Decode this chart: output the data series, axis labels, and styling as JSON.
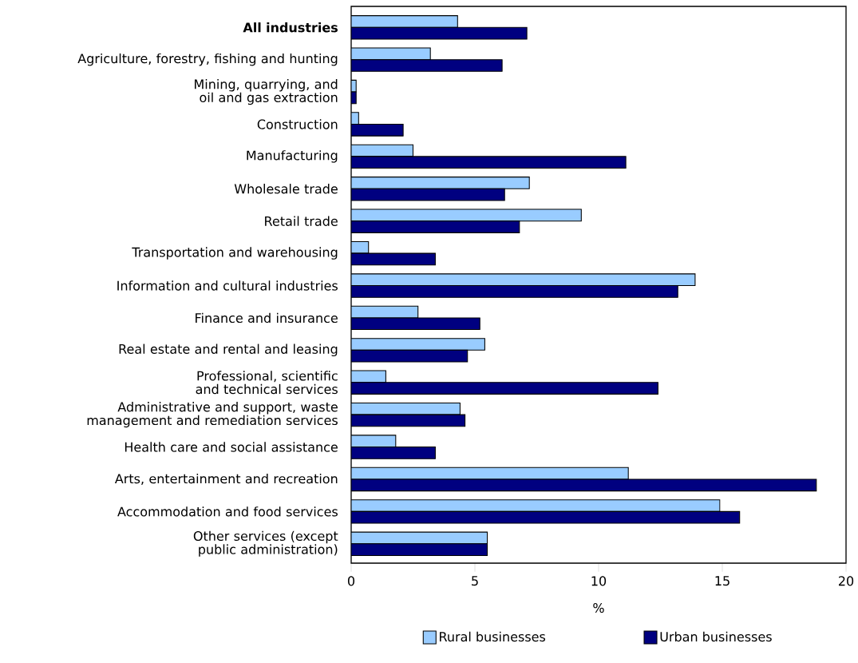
{
  "chart_data": {
    "type": "bar",
    "orientation": "horizontal",
    "categories": [
      "**All industries**",
      "Agriculture, forestry, fishing and hunting",
      "Mining, quarrying, and oil and gas extraction",
      "Construction",
      "Manufacturing",
      "Wholesale trade",
      "Retail trade",
      "Transportation and warehousing",
      "Information and cultural industries",
      "Finance and insurance",
      "Real estate and rental and leasing",
      "Professional, scientific and technical services",
      "Administrative and support, waste management and remediation services",
      "Health care and social assistance",
      "Arts, entertainment and recreation",
      "Accommodation and food services",
      "Other services (except public administration)"
    ],
    "series": [
      {
        "name": "Rural businesses",
        "color": "#99ccff",
        "values": [
          4.3,
          3.2,
          0.2,
          0.3,
          2.5,
          7.2,
          9.3,
          0.7,
          13.9,
          2.7,
          5.4,
          1.4,
          4.4,
          1.8,
          11.2,
          14.9,
          5.5
        ]
      },
      {
        "name": "Urban businesses",
        "color": "#000080",
        "values": [
          7.1,
          6.1,
          0.2,
          2.1,
          11.1,
          6.2,
          6.8,
          3.4,
          13.2,
          5.2,
          4.7,
          12.4,
          4.6,
          3.4,
          18.8,
          15.7,
          5.5
        ]
      }
    ],
    "xlim": [
      0,
      20
    ],
    "xticks": [
      0,
      5,
      10,
      15,
      20
    ],
    "xlabel": "%",
    "legend": "bottom"
  }
}
